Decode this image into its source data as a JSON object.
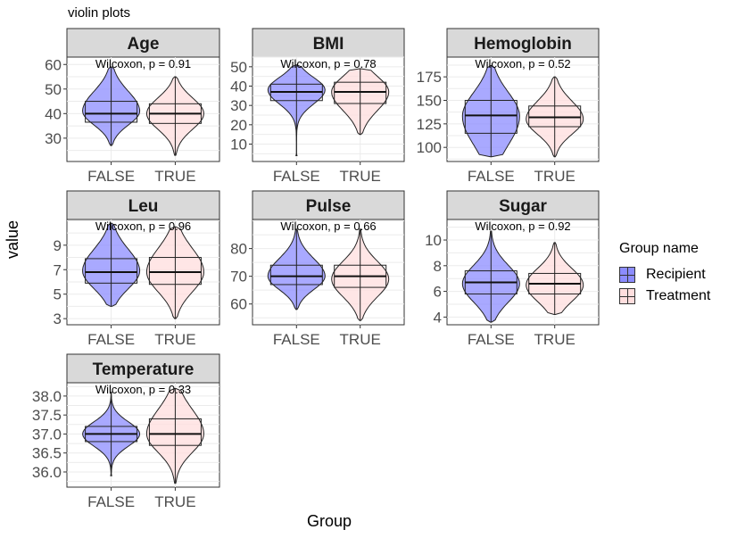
{
  "chart_data": {
    "type": "violin",
    "title": "violin plots",
    "xlabel": "Group",
    "ylabel": "value",
    "categories": [
      "FALSE",
      "TRUE"
    ],
    "legend": {
      "title": "Group name",
      "position": "right",
      "items": [
        {
          "label": "Recipient",
          "color": "#8c8cff"
        },
        {
          "label": "Treatment",
          "color": "#ffdede"
        }
      ]
    },
    "panels": [
      {
        "name": "Age",
        "annotation": "Wilcoxon, p = 0.91",
        "ylim": [
          20.5,
          63
        ],
        "ticks": [
          30,
          40,
          50,
          60
        ],
        "groups": [
          {
            "group": "FALSE",
            "q1": 36.5,
            "median": 40,
            "q3": 45,
            "min": 27,
            "max": 59,
            "peak": 41
          },
          {
            "group": "TRUE",
            "q1": 36,
            "median": 40,
            "q3": 44,
            "min": 23,
            "max": 55,
            "peak": 40
          }
        ]
      },
      {
        "name": "BMI",
        "annotation": "Wilcoxon, p = 0.78",
        "ylim": [
          1,
          55
        ],
        "ticks": [
          10,
          20,
          30,
          40,
          50
        ],
        "groups": [
          {
            "group": "FALSE",
            "q1": 32.5,
            "median": 37,
            "q3": 41,
            "min": 4,
            "max": 51,
            "peak": 38
          },
          {
            "group": "TRUE",
            "q1": 31,
            "median": 37,
            "q3": 42,
            "min": 15,
            "max": 49,
            "peak": 37
          }
        ]
      },
      {
        "name": "Hemoglobin",
        "annotation": "Wilcoxon, p = 0.52",
        "ylim": [
          85,
          196
        ],
        "ticks": [
          100,
          125,
          150,
          175
        ],
        "groups": [
          {
            "group": "FALSE",
            "q1": 115,
            "median": 134,
            "q3": 150,
            "min": 90,
            "max": 187,
            "peak": 133
          },
          {
            "group": "TRUE",
            "q1": 122,
            "median": 132,
            "q3": 144,
            "min": 90,
            "max": 175,
            "peak": 130
          }
        ]
      },
      {
        "name": "Leu",
        "annotation": "Wilcoxon, p = 0.96",
        "ylim": [
          2.5,
          11.1
        ],
        "ticks": [
          3,
          5,
          7,
          9
        ],
        "groups": [
          {
            "group": "FALSE",
            "q1": 5.9,
            "median": 6.8,
            "q3": 7.9,
            "min": 4,
            "max": 10.8,
            "peak": 6.9
          },
          {
            "group": "TRUE",
            "q1": 5.8,
            "median": 6.8,
            "q3": 8,
            "min": 3,
            "max": 10.5,
            "peak": 6.8
          }
        ]
      },
      {
        "name": "Pulse",
        "annotation": "Wilcoxon, p = 0.66",
        "ylim": [
          52.5,
          90.5
        ],
        "ticks": [
          60,
          70,
          80
        ],
        "groups": [
          {
            "group": "FALSE",
            "q1": 67,
            "median": 70,
            "q3": 74,
            "min": 58,
            "max": 87,
            "peak": 70
          },
          {
            "group": "TRUE",
            "q1": 66,
            "median": 70,
            "q3": 74,
            "min": 54,
            "max": 87,
            "peak": 69
          }
        ]
      },
      {
        "name": "Sugar",
        "annotation": "Wilcoxon, p = 0.92",
        "ylim": [
          3.4,
          11.6
        ],
        "ticks": [
          4,
          6,
          8,
          10
        ],
        "groups": [
          {
            "group": "FALSE",
            "q1": 5.8,
            "median": 6.7,
            "q3": 7.6,
            "min": 3.6,
            "max": 10.7,
            "peak": 6.6
          },
          {
            "group": "TRUE",
            "q1": 5.8,
            "median": 6.6,
            "q3": 7.4,
            "min": 4.2,
            "max": 9.8,
            "peak": 6.5
          }
        ]
      },
      {
        "name": "Temperature",
        "annotation": "Wilcoxon, p = 0.33",
        "ylim": [
          35.6,
          38.35
        ],
        "ticks": [
          36.0,
          36.5,
          37.0,
          37.5,
          38.0
        ],
        "groups": [
          {
            "group": "FALSE",
            "q1": 36.8,
            "median": 37,
            "q3": 37.2,
            "min": 35.9,
            "max": 38.1,
            "peak": 37
          },
          {
            "group": "TRUE",
            "q1": 36.7,
            "median": 37,
            "q3": 37.4,
            "min": 35.7,
            "max": 38.2,
            "peak": 37
          }
        ]
      }
    ]
  }
}
